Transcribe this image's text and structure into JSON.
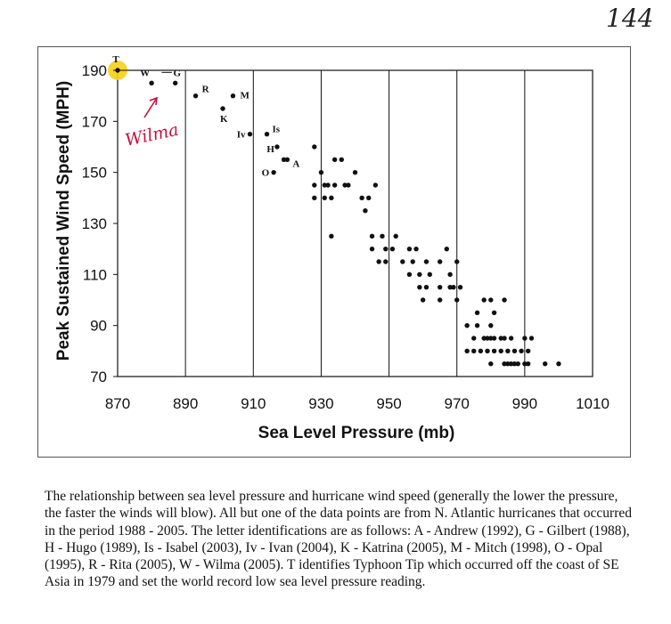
{
  "page_number": "144",
  "chart_data": {
    "type": "scatter",
    "title": "",
    "xlabel": "Sea Level Pressure (mb)",
    "ylabel": "Peak Sustained Wind Speed (MPH)",
    "xlim": [
      870,
      1010
    ],
    "ylim": [
      70,
      190
    ],
    "xticks": [
      870,
      890,
      910,
      930,
      950,
      970,
      990,
      1010
    ],
    "yticks": [
      70,
      90,
      110,
      130,
      150,
      170,
      190
    ],
    "grid": "vertical",
    "points": [
      [
        870,
        190
      ],
      [
        880,
        185
      ],
      [
        887,
        185
      ],
      [
        893,
        180
      ],
      [
        904,
        180
      ],
      [
        901,
        175
      ],
      [
        909,
        165
      ],
      [
        914,
        165
      ],
      [
        917,
        160
      ],
      [
        919,
        155
      ],
      [
        920,
        155
      ],
      [
        928,
        160
      ],
      [
        916,
        150
      ],
      [
        930,
        150
      ],
      [
        934,
        155
      ],
      [
        936,
        155
      ],
      [
        940,
        150
      ],
      [
        928,
        145
      ],
      [
        931,
        145
      ],
      [
        932,
        145
      ],
      [
        934,
        145
      ],
      [
        937,
        145
      ],
      [
        938,
        145
      ],
      [
        946,
        145
      ],
      [
        928,
        140
      ],
      [
        931,
        140
      ],
      [
        933,
        140
      ],
      [
        942,
        140
      ],
      [
        944,
        140
      ],
      [
        943,
        135
      ],
      [
        933,
        125
      ],
      [
        945,
        125
      ],
      [
        948,
        125
      ],
      [
        952,
        125
      ],
      [
        945,
        120
      ],
      [
        949,
        120
      ],
      [
        951,
        120
      ],
      [
        956,
        120
      ],
      [
        958,
        120
      ],
      [
        967,
        120
      ],
      [
        947,
        115
      ],
      [
        949,
        115
      ],
      [
        954,
        115
      ],
      [
        957,
        115
      ],
      [
        961,
        115
      ],
      [
        965,
        115
      ],
      [
        970,
        115
      ],
      [
        956,
        110
      ],
      [
        959,
        110
      ],
      [
        962,
        110
      ],
      [
        968,
        110
      ],
      [
        959,
        105
      ],
      [
        961,
        105
      ],
      [
        965,
        105
      ],
      [
        968,
        105
      ],
      [
        969,
        105
      ],
      [
        971,
        105
      ],
      [
        960,
        100
      ],
      [
        965,
        100
      ],
      [
        970,
        100
      ],
      [
        978,
        100
      ],
      [
        980,
        100
      ],
      [
        984,
        100
      ],
      [
        976,
        95
      ],
      [
        981,
        95
      ],
      [
        973,
        90
      ],
      [
        976,
        90
      ],
      [
        980,
        90
      ],
      [
        975,
        85
      ],
      [
        978,
        85
      ],
      [
        979,
        85
      ],
      [
        980,
        85
      ],
      [
        981,
        85
      ],
      [
        983,
        85
      ],
      [
        984,
        85
      ],
      [
        986,
        85
      ],
      [
        990,
        85
      ],
      [
        992,
        85
      ],
      [
        973,
        80
      ],
      [
        975,
        80
      ],
      [
        977,
        80
      ],
      [
        979,
        80
      ],
      [
        981,
        80
      ],
      [
        983,
        80
      ],
      [
        985,
        80
      ],
      [
        987,
        80
      ],
      [
        989,
        80
      ],
      [
        991,
        80
      ],
      [
        980,
        75
      ],
      [
        984,
        75
      ],
      [
        985,
        75
      ],
      [
        986,
        75
      ],
      [
        987,
        75
      ],
      [
        988,
        75
      ],
      [
        990,
        75
      ],
      [
        991,
        75
      ],
      [
        996,
        75
      ],
      [
        1000,
        75
      ]
    ],
    "annotations": [
      {
        "text": "T",
        "x": 870,
        "y": 190
      },
      {
        "text": "W",
        "x": 880,
        "y": 185
      },
      {
        "text": "G",
        "x": 887,
        "y": 185
      },
      {
        "text": "R",
        "x": 893,
        "y": 180
      },
      {
        "text": "M",
        "x": 904,
        "y": 180
      },
      {
        "text": "K",
        "x": 901,
        "y": 175
      },
      {
        "text": "Iv",
        "x": 909,
        "y": 165
      },
      {
        "text": "Is",
        "x": 914,
        "y": 165
      },
      {
        "text": "H",
        "x": 917,
        "y": 160
      },
      {
        "text": "A",
        "x": 920,
        "y": 155
      },
      {
        "text": "O",
        "x": 916,
        "y": 150
      }
    ],
    "highlight": {
      "label": "T",
      "x": 870,
      "y": 190,
      "color": "#f5d018"
    },
    "handwritten_note": {
      "text": "Wilma",
      "color": "#c4123e"
    }
  },
  "caption": "The relationship between sea level pressure and hurricane wind speed (generally the lower the pressure, the faster the winds will blow).  All but one of the data points are from N. Atlantic hurricanes that occurred in the period 1988 - 2005.  The letter identifications are as follows: A - Andrew (1992), G - Gilbert (1988), H - Hugo (1989), Is - Isabel (2003), Iv - Ivan (2004), K - Katrina (2005), M - Mitch (1998), O - Opal (1995), R - Rita (2005), W - Wilma (2005).  T identifies Typhoon Tip which occurred off the coast of SE Asia in 1979 and set the world record low sea level pressure reading."
}
